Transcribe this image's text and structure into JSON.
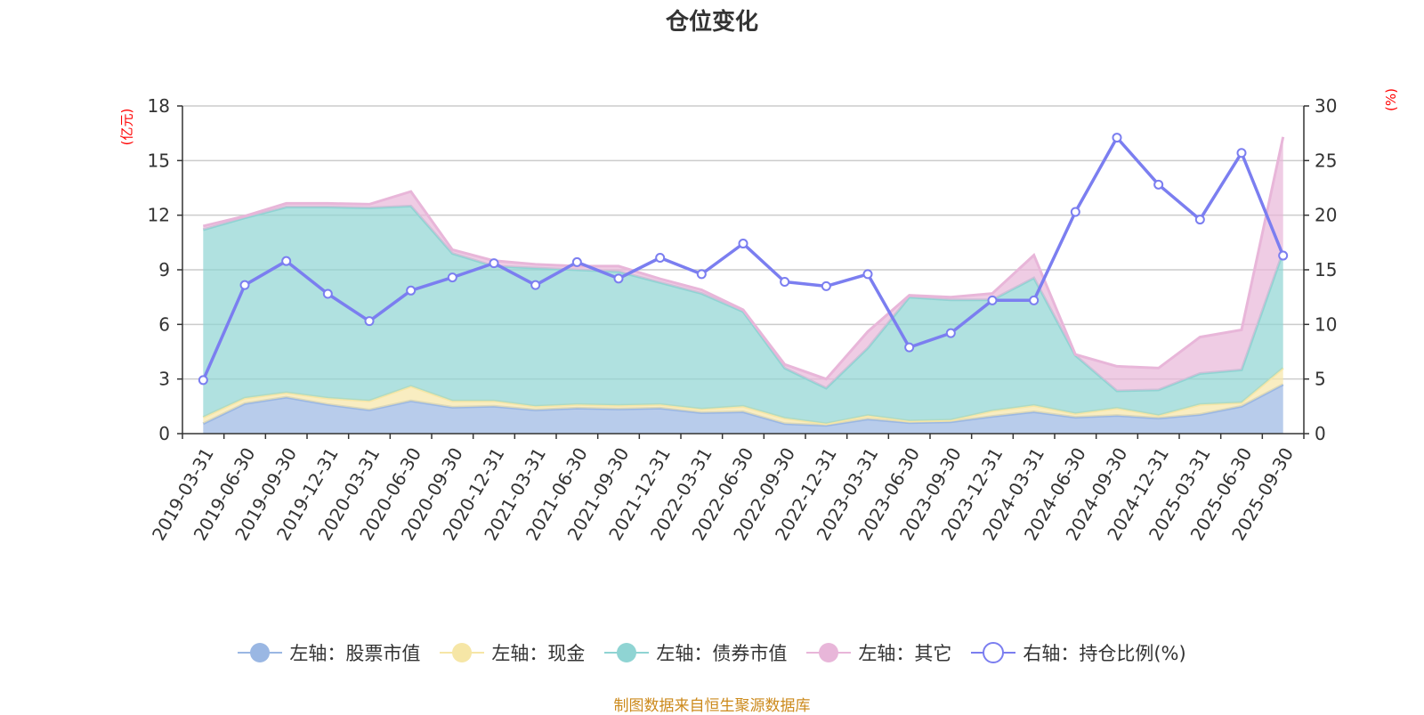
{
  "chart_data": {
    "type": "area",
    "title": "仓位变化",
    "left_axis_unit": "(亿元)",
    "right_axis_unit": "(%)",
    "left_ylim": [
      0,
      18
    ],
    "left_yticks": [
      0,
      3,
      6,
      9,
      12,
      15,
      18
    ],
    "right_ylim": [
      0,
      30
    ],
    "right_yticks": [
      0,
      5,
      10,
      15,
      20,
      25,
      30
    ],
    "grid": true,
    "legend_position": "bottom",
    "categories": [
      "2019-03-31",
      "2019-06-30",
      "2019-09-30",
      "2019-12-31",
      "2020-03-31",
      "2020-06-30",
      "2020-09-30",
      "2020-12-31",
      "2021-03-31",
      "2021-06-30",
      "2021-09-30",
      "2021-12-31",
      "2022-03-31",
      "2022-06-30",
      "2022-09-30",
      "2022-12-31",
      "2023-03-31",
      "2023-06-30",
      "2023-09-30",
      "2023-12-31",
      "2024-03-31",
      "2024-06-30",
      "2024-09-30",
      "2024-12-31",
      "2025-03-31",
      "2025-06-30",
      "2025-09-30"
    ],
    "stacked_series": [
      {
        "name": "左轴：股票市值",
        "color": "#9ab7e3",
        "values": [
          0.55,
          1.65,
          2.0,
          1.6,
          1.3,
          1.8,
          1.45,
          1.5,
          1.3,
          1.4,
          1.35,
          1.4,
          1.15,
          1.2,
          0.55,
          0.45,
          0.8,
          0.6,
          0.65,
          0.95,
          1.2,
          0.9,
          1.0,
          0.85,
          1.05,
          1.5,
          2.7
        ]
      },
      {
        "name": "左轴：现金",
        "color": "#f6e6a6",
        "values": [
          0.35,
          0.3,
          0.25,
          0.35,
          0.5,
          0.8,
          0.35,
          0.3,
          0.2,
          0.2,
          0.2,
          0.2,
          0.2,
          0.3,
          0.3,
          0.1,
          0.2,
          0.1,
          0.1,
          0.3,
          0.35,
          0.2,
          0.4,
          0.15,
          0.55,
          0.2,
          0.9
        ]
      },
      {
        "name": "左轴：债券市值",
        "color": "#8fd4d3",
        "values": [
          10.3,
          9.9,
          10.2,
          10.5,
          10.6,
          9.9,
          8.1,
          7.4,
          7.6,
          7.4,
          7.35,
          6.7,
          6.35,
          5.2,
          2.75,
          1.95,
          3.7,
          6.8,
          6.6,
          6.1,
          7.0,
          3.2,
          0.95,
          1.4,
          1.7,
          1.8,
          6.4
        ]
      },
      {
        "name": "左轴：其它",
        "color": "#e8b6d9",
        "values": [
          0.2,
          0.1,
          0.2,
          0.2,
          0.2,
          0.8,
          0.2,
          0.3,
          0.2,
          0.2,
          0.3,
          0.2,
          0.2,
          0.1,
          0.2,
          0.5,
          0.9,
          0.1,
          0.15,
          0.35,
          1.25,
          0.05,
          1.35,
          1.2,
          2.0,
          2.2,
          6.3
        ]
      }
    ],
    "line_series": {
      "name": "右轴：持仓比例(%)",
      "color": "#7b7ef0",
      "values": [
        4.9,
        13.6,
        15.8,
        12.8,
        10.3,
        13.1,
        14.3,
        15.6,
        13.6,
        15.7,
        14.2,
        16.1,
        14.6,
        17.4,
        13.9,
        13.5,
        14.6,
        7.9,
        9.2,
        12.2,
        12.2,
        20.3,
        27.1,
        22.8,
        19.6,
        25.7,
        16.3
      ]
    },
    "legend": [
      {
        "label": "左轴：股票市值",
        "color": "#9ab7e3",
        "marker": "filled-circle"
      },
      {
        "label": "左轴：现金",
        "color": "#f6e6a6",
        "marker": "filled-circle"
      },
      {
        "label": "左轴：债券市值",
        "color": "#8fd4d3",
        "marker": "filled-circle"
      },
      {
        "label": "左轴：其它",
        "color": "#e8b6d9",
        "marker": "filled-circle"
      },
      {
        "label": "右轴：持仓比例(%)",
        "color": "#7b7ef0",
        "marker": "hollow-circle"
      }
    ]
  },
  "footer": "制图数据来自恒生聚源数据库"
}
